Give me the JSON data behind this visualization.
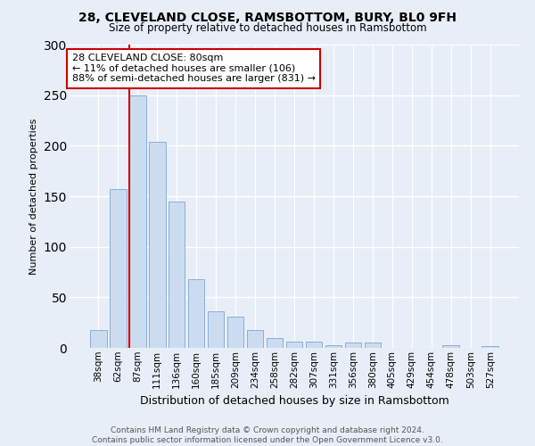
{
  "title": "28, CLEVELAND CLOSE, RAMSBOTTOM, BURY, BL0 9FH",
  "subtitle": "Size of property relative to detached houses in Ramsbottom",
  "xlabel": "Distribution of detached houses by size in Ramsbottom",
  "ylabel": "Number of detached properties",
  "categories": [
    "38sqm",
    "62sqm",
    "87sqm",
    "111sqm",
    "136sqm",
    "160sqm",
    "185sqm",
    "209sqm",
    "234sqm",
    "258sqm",
    "282sqm",
    "307sqm",
    "331sqm",
    "356sqm",
    "380sqm",
    "405sqm",
    "429sqm",
    "454sqm",
    "478sqm",
    "503sqm",
    "527sqm"
  ],
  "values": [
    18,
    157,
    250,
    204,
    145,
    68,
    36,
    31,
    18,
    10,
    6,
    6,
    3,
    5,
    5,
    0,
    0,
    0,
    3,
    0,
    2
  ],
  "bar_color": "#ccdcf0",
  "bar_edge_color": "#8aafd4",
  "vline_color": "#cc0000",
  "vline_x": 1.575,
  "annotation_text": "28 CLEVELAND CLOSE: 80sqm\n← 11% of detached houses are smaller (106)\n88% of semi-detached houses are larger (831) →",
  "annotation_box_color": "#ffffff",
  "annotation_box_edge_color": "#cc0000",
  "ylim": [
    0,
    300
  ],
  "yticks": [
    0,
    50,
    100,
    150,
    200,
    250,
    300
  ],
  "background_color": "#e8eef8",
  "grid_color": "#ffffff",
  "footnote": "Contains HM Land Registry data © Crown copyright and database right 2024.\nContains public sector information licensed under the Open Government Licence v3.0."
}
